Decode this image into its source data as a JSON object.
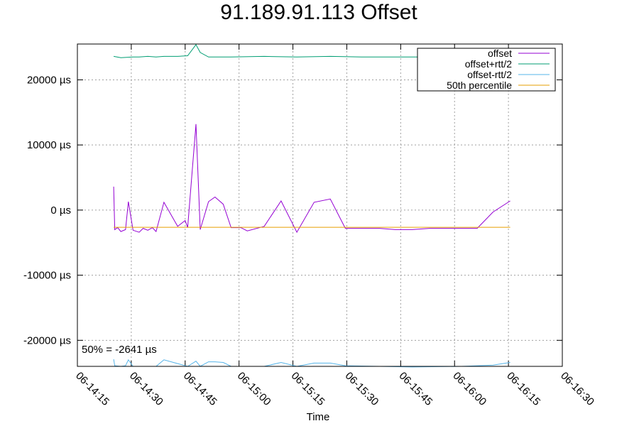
{
  "chart_data": {
    "type": "line",
    "title": "91.189.91.113 Offset",
    "xlabel": "Time",
    "ylabel": "",
    "x_ticks": [
      "06-14:15",
      "06-14:30",
      "06-14:45",
      "06-15:00",
      "06-15:15",
      "06-15:30",
      "06-15:45",
      "06-16:00",
      "06-16:15",
      "06-16:30"
    ],
    "x_range_min": [
      0,
      135
    ],
    "y_ticks": [
      {
        "value": 20000,
        "label": "20000 µs"
      },
      {
        "value": 10000,
        "label": "10000 µs"
      },
      {
        "value": 0,
        "label": "0 µs"
      },
      {
        "value": -10000,
        "label": "-10000 µs"
      },
      {
        "value": -20000,
        "label": "-20000 µs"
      }
    ],
    "ylim": [
      -24000,
      25500
    ],
    "grid": true,
    "legend_position": "top-right",
    "annotation": "50% = -2641 µs",
    "series": [
      {
        "name": "offset",
        "color": "#9400d3",
        "x": [
          10.1,
          10.4,
          11.2,
          12.1,
          13.4,
          14.2,
          15.5,
          17.2,
          18.3,
          19.6,
          20.9,
          21.9,
          24.1,
          27.9,
          30.0,
          30.7,
          33.0,
          34.2,
          36.5,
          38.3,
          40.6,
          42.8,
          45.5,
          47.3,
          52.0,
          56.7,
          61.1,
          65.9,
          70.4,
          74.6,
          79.2,
          84.1,
          88.5,
          93.2,
          98.1,
          102.5,
          106.9,
          111.3,
          115.7,
          120.5
        ],
        "y": [
          3600,
          -3000,
          -2700,
          -3300,
          -3000,
          1300,
          -3100,
          -3400,
          -2800,
          -3100,
          -2700,
          -3300,
          1200,
          -2500,
          -1600,
          -2700,
          13200,
          -3000,
          1300,
          2000,
          900,
          -2700,
          -2700,
          -3200,
          -2500,
          1400,
          -3400,
          1200,
          1700,
          -2800,
          -2800,
          -2800,
          -3000,
          -3000,
          -2800,
          -2800,
          -2800,
          -2800,
          -300,
          1400
        ]
      },
      {
        "name": "offset+rtt/2",
        "color": "#009e73",
        "x": [
          10.1,
          12.1,
          15.5,
          17.2,
          19.6,
          21.9,
          24.1,
          27.9,
          30.7,
          33.0,
          34.2,
          36.5,
          42.8,
          52.0,
          61.1,
          70.4,
          79.2,
          88.5,
          98.1,
          106.9,
          115.7,
          120.5
        ],
        "y": [
          23600,
          23400,
          23500,
          23500,
          23600,
          23500,
          23600,
          23600,
          23700,
          25400,
          24200,
          23500,
          23500,
          23600,
          23500,
          23600,
          23500,
          23500,
          23500,
          23500,
          23500,
          23500
        ]
      },
      {
        "name": "offset-rtt/2",
        "color": "#56b4e9",
        "x": [
          10.1,
          10.4,
          12.1,
          13.4,
          14.2,
          15.5,
          21.9,
          24.1,
          30.7,
          33.0,
          34.2,
          36.5,
          38.3,
          40.6,
          42.8,
          52.0,
          56.7,
          61.1,
          65.9,
          70.4,
          74.6,
          84.1,
          93.2,
          106.9,
          115.7,
          120.5
        ],
        "y": [
          -22900,
          -23900,
          -24000,
          -23900,
          -23000,
          -24000,
          -24000,
          -23000,
          -24000,
          -23200,
          -24000,
          -23300,
          -23300,
          -23400,
          -24000,
          -24000,
          -23400,
          -24000,
          -23500,
          -23500,
          -23900,
          -24000,
          -24100,
          -24000,
          -23800,
          -23400
        ]
      },
      {
        "name": "50th percentile",
        "color": "#e69f00",
        "x": [
          10.1,
          120.5
        ],
        "y": [
          -2641,
          -2641
        ]
      }
    ]
  }
}
